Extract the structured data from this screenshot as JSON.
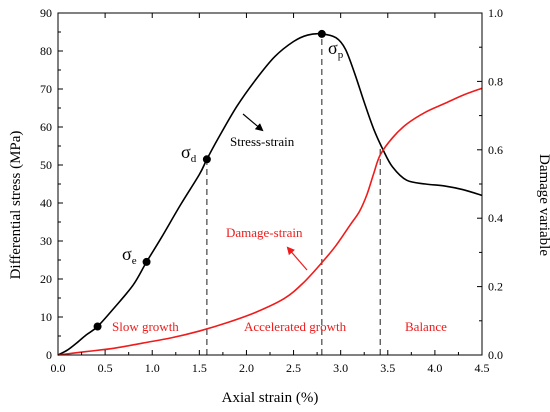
{
  "chart_data": {
    "type": "line",
    "xlabel": "Axial strain (%)",
    "ylabel": "Differential stress (MPa)",
    "y2label": "Damage variable",
    "xlim": [
      0,
      4.5
    ],
    "ylim": [
      0,
      90
    ],
    "y2lim": [
      0,
      1.0
    ],
    "x_ticks": [
      "0.0",
      "0.5",
      "1.0",
      "1.5",
      "2.0",
      "2.5",
      "3.0",
      "3.5",
      "4.0",
      "4.5"
    ],
    "y_ticks": [
      "0",
      "10",
      "20",
      "30",
      "40",
      "50",
      "60",
      "70",
      "80",
      "90"
    ],
    "y2_ticks": [
      "0.0",
      "0.2",
      "0.4",
      "0.6",
      "0.8",
      "1.0"
    ],
    "colors": {
      "stress": "#000000",
      "damage": "#ee1c1c",
      "dashed": "#444444"
    },
    "series": [
      {
        "name": "Stress-strain",
        "axis": "left",
        "x": [
          0.0,
          0.1,
          0.2,
          0.3,
          0.42,
          0.6,
          0.8,
          0.94,
          1.1,
          1.3,
          1.5,
          1.58,
          1.7,
          1.9,
          2.1,
          2.3,
          2.5,
          2.65,
          2.8,
          2.95,
          3.05,
          3.15,
          3.25,
          3.35,
          3.45,
          3.55,
          3.7,
          3.9,
          4.1,
          4.3,
          4.5
        ],
        "y": [
          0,
          1.3,
          3.2,
          5.3,
          7.5,
          12.5,
          18.5,
          24.5,
          31,
          39.5,
          47.5,
          51.5,
          57,
          65.5,
          72.5,
          78.5,
          82.5,
          84.2,
          84.5,
          83.5,
          80.5,
          74,
          66.5,
          59.5,
          54,
          49.5,
          46,
          45,
          44.5,
          43.5,
          42
        ]
      },
      {
        "name": "Damage-strain",
        "axis": "right",
        "x": [
          0.0,
          0.3,
          0.6,
          0.9,
          1.2,
          1.5,
          1.8,
          2.1,
          2.4,
          2.6,
          2.8,
          2.95,
          3.1,
          3.2,
          3.28,
          3.35,
          3.42,
          3.55,
          3.7,
          3.9,
          4.1,
          4.3,
          4.5
        ],
        "y": [
          0,
          0.01,
          0.02,
          0.035,
          0.05,
          0.07,
          0.095,
          0.125,
          0.165,
          0.21,
          0.27,
          0.32,
          0.38,
          0.42,
          0.47,
          0.53,
          0.585,
          0.635,
          0.675,
          0.71,
          0.735,
          0.76,
          0.78
        ]
      }
    ],
    "points": [
      {
        "label": "σe",
        "x": 0.94,
        "y": 24.5
      },
      {
        "label": "σd",
        "x": 1.58,
        "y": 51.5
      },
      {
        "label": "σp",
        "x": 2.8,
        "y": 84.5
      },
      {
        "label": "",
        "x": 0.42,
        "y": 7.5
      }
    ],
    "dashed_x": [
      1.58,
      2.8,
      3.42
    ],
    "annotations": {
      "stress_strain": "Stress-strain",
      "damage_strain": "Damage-strain",
      "slow_growth": "Slow growth",
      "accelerated_growth": "Accelerated growth",
      "balance": "Balance",
      "sigma": "σ",
      "sub_e": "e",
      "sub_d": "d",
      "sub_p": "p"
    }
  }
}
